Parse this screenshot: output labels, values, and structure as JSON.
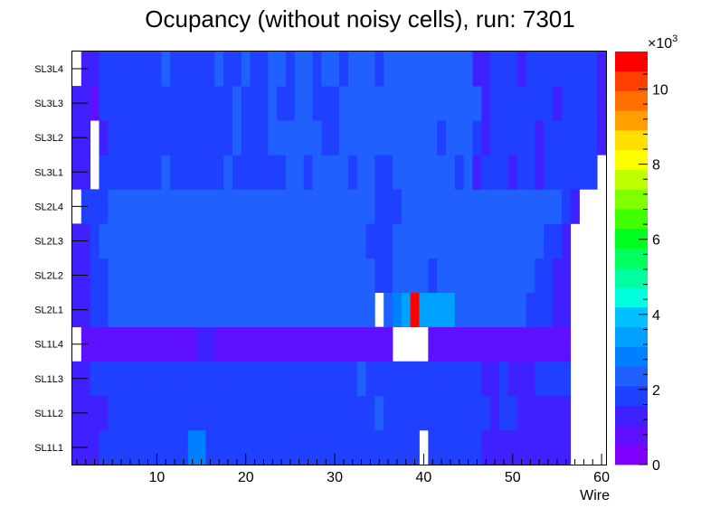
{
  "chart_data": {
    "type": "heatmap",
    "title": "Ocupancy (without noisy cells), run: 7301",
    "xlabel": "Wire",
    "ylabel": "",
    "xlim": [
      0.5,
      60.5
    ],
    "x_ticks": [
      "10",
      "20",
      "30",
      "40",
      "50",
      "60"
    ],
    "y_categories": [
      "SL1L1",
      "SL1L2",
      "SL1L3",
      "SL1L4",
      "SL2L1",
      "SL2L2",
      "SL2L3",
      "SL2L4",
      "SL3L1",
      "SL3L2",
      "SL3L3",
      "SL3L4"
    ],
    "color_scale": {
      "min": 0,
      "max": 11000,
      "exponent_label": "×10",
      "exponent_power": "3",
      "tick_labels": [
        "0",
        "2",
        "4",
        "6",
        "8",
        "10"
      ],
      "palette": [
        "#7f00ff",
        "#5f10ff",
        "#3f20ff",
        "#1f40ff",
        "#2060ff",
        "#0080ff",
        "#00a0ff",
        "#00c0ff",
        "#00ffdf",
        "#00ff9f",
        "#00ff5f",
        "#00ff1f",
        "#40ff00",
        "#7fff00",
        "#bfff00",
        "#ffff00",
        "#ffdf00",
        "#ffa000",
        "#ff7000",
        "#ff4000",
        "#ff0000"
      ]
    },
    "values_note": "approximate occupancy counts estimated from cell colours; null = empty (white) cell",
    "rows": [
      {
        "layer": "SL1L1",
        "values": [
          1200,
          1200,
          1200,
          1800,
          1800,
          1800,
          1800,
          1800,
          1800,
          1800,
          1800,
          1800,
          1800,
          2800,
          2800,
          1800,
          1800,
          1800,
          1800,
          1800,
          1800,
          1800,
          1800,
          1800,
          1800,
          1800,
          1800,
          1800,
          1800,
          1800,
          1800,
          1800,
          1800,
          1800,
          1800,
          1800,
          1800,
          1800,
          1800,
          null,
          1800,
          1800,
          1800,
          1800,
          1800,
          1800,
          1200,
          1200,
          1200,
          1200,
          1200,
          1200,
          1200,
          1200,
          1200,
          1200,
          null,
          null,
          null,
          null
        ]
      },
      {
        "layer": "SL1L2",
        "values": [
          1200,
          1200,
          1200,
          1200,
          1800,
          1800,
          1800,
          1800,
          1800,
          1800,
          1800,
          1800,
          1800,
          1800,
          1800,
          1800,
          1800,
          1800,
          1800,
          1800,
          1800,
          1800,
          1800,
          1800,
          1800,
          1800,
          1800,
          1800,
          1800,
          1800,
          1800,
          1800,
          1800,
          1800,
          2100,
          1800,
          1800,
          1800,
          1800,
          1800,
          1800,
          1800,
          1800,
          1800,
          1800,
          1800,
          1800,
          1200,
          1800,
          1800,
          1200,
          1200,
          1200,
          1200,
          1200,
          1200,
          null,
          null,
          null,
          null
        ]
      },
      {
        "layer": "SL1L3",
        "values": [
          1200,
          1200,
          1800,
          1800,
          1800,
          1800,
          1800,
          1800,
          1800,
          1800,
          1800,
          1800,
          1800,
          1800,
          1800,
          1800,
          1800,
          1800,
          1800,
          1800,
          1800,
          1800,
          1800,
          1800,
          1800,
          1800,
          1800,
          1800,
          1800,
          1800,
          1800,
          1800,
          2100,
          1800,
          1800,
          1800,
          1800,
          1800,
          1800,
          1800,
          1800,
          1800,
          1800,
          1800,
          1800,
          1800,
          1200,
          1200,
          1800,
          1200,
          1200,
          1200,
          1800,
          1800,
          1800,
          1800,
          null,
          null,
          null,
          null
        ]
      },
      {
        "layer": "SL1L4",
        "values": [
          null,
          900,
          900,
          900,
          900,
          900,
          900,
          900,
          900,
          900,
          900,
          900,
          900,
          900,
          1200,
          1200,
          900,
          900,
          900,
          900,
          900,
          900,
          900,
          900,
          900,
          900,
          900,
          900,
          900,
          900,
          900,
          900,
          900,
          900,
          900,
          900,
          null,
          null,
          null,
          null,
          900,
          900,
          900,
          900,
          900,
          900,
          900,
          900,
          900,
          900,
          900,
          900,
          900,
          900,
          900,
          900,
          null,
          null,
          null,
          null
        ]
      },
      {
        "layer": "SL2L1",
        "values": [
          1200,
          1200,
          1800,
          1800,
          2400,
          2400,
          2400,
          2400,
          2400,
          2400,
          2400,
          2400,
          2400,
          2400,
          2400,
          2400,
          2400,
          2400,
          2400,
          2400,
          2400,
          2400,
          2400,
          2400,
          2400,
          2400,
          2400,
          2400,
          2400,
          2400,
          2400,
          2400,
          2400,
          2400,
          null,
          2400,
          2800,
          3200,
          10800,
          3200,
          3200,
          3200,
          3200,
          2400,
          2400,
          2400,
          2400,
          2400,
          2400,
          2400,
          2400,
          1800,
          1800,
          1800,
          1200,
          1200,
          null,
          null,
          null,
          null
        ]
      },
      {
        "layer": "SL2L2",
        "values": [
          1200,
          1200,
          1800,
          1800,
          2400,
          2400,
          2400,
          2400,
          2400,
          2400,
          2400,
          2400,
          2400,
          2400,
          2400,
          2400,
          2400,
          2400,
          2400,
          2400,
          2400,
          2400,
          2400,
          2400,
          2400,
          2400,
          2400,
          2400,
          2400,
          2400,
          2400,
          2400,
          2400,
          2400,
          1800,
          1800,
          2400,
          2400,
          2400,
          2400,
          1800,
          2400,
          2400,
          2400,
          2400,
          2400,
          2400,
          2400,
          2400,
          2400,
          2400,
          2400,
          1800,
          1800,
          1200,
          1200,
          null,
          null,
          null,
          null
        ]
      },
      {
        "layer": "SL2L3",
        "values": [
          1200,
          1200,
          1800,
          2400,
          2400,
          2400,
          2400,
          2400,
          2400,
          2400,
          2400,
          2400,
          2400,
          2400,
          2400,
          2400,
          2400,
          2400,
          2400,
          2400,
          2400,
          2400,
          2400,
          2400,
          2400,
          2400,
          2400,
          2400,
          2400,
          2400,
          2400,
          2400,
          2400,
          1800,
          1800,
          1800,
          2400,
          2400,
          2400,
          2400,
          2400,
          2400,
          2400,
          2400,
          2400,
          2400,
          2400,
          2400,
          2400,
          2400,
          2400,
          2400,
          2400,
          1800,
          1800,
          1200,
          null,
          null,
          null,
          null
        ]
      },
      {
        "layer": "SL2L4",
        "values": [
          null,
          1800,
          1800,
          1800,
          2400,
          2400,
          2400,
          2400,
          2400,
          2400,
          2400,
          2400,
          2400,
          2400,
          2400,
          2400,
          2400,
          2400,
          2400,
          2400,
          2400,
          2400,
          2400,
          2400,
          2400,
          2400,
          2400,
          2400,
          2400,
          2400,
          2400,
          2400,
          2400,
          2400,
          1800,
          1800,
          1800,
          2400,
          2400,
          2400,
          2400,
          2400,
          2400,
          2400,
          2400,
          2400,
          2400,
          2400,
          2400,
          2400,
          2400,
          2400,
          2400,
          2400,
          2400,
          1800,
          1200,
          null,
          null,
          null
        ]
      },
      {
        "layer": "SL3L1",
        "values": [
          1200,
          1200,
          null,
          1800,
          1800,
          1800,
          1800,
          1800,
          1800,
          1800,
          2400,
          1800,
          1800,
          1800,
          1800,
          1800,
          1800,
          2400,
          1800,
          1800,
          1800,
          1800,
          1800,
          1800,
          2400,
          2400,
          1800,
          2400,
          2400,
          2400,
          2400,
          1800,
          2400,
          2400,
          1800,
          1800,
          2400,
          2400,
          2400,
          2400,
          2400,
          2400,
          2400,
          1800,
          2400,
          1200,
          1800,
          1800,
          1800,
          1200,
          1800,
          1800,
          1200,
          1800,
          1800,
          1800,
          1800,
          1800,
          1800,
          null
        ]
      },
      {
        "layer": "SL3L2",
        "values": [
          1200,
          1200,
          null,
          1200,
          1800,
          1800,
          1800,
          1800,
          1800,
          1800,
          1800,
          1800,
          1800,
          1800,
          1800,
          1800,
          1800,
          1800,
          2400,
          1800,
          1800,
          1800,
          2400,
          2400,
          2400,
          2400,
          2400,
          2400,
          1800,
          1800,
          2400,
          2400,
          2400,
          2400,
          2400,
          2400,
          2400,
          2400,
          2400,
          2400,
          2400,
          1800,
          2400,
          2400,
          2400,
          1800,
          1200,
          1800,
          1800,
          1800,
          1800,
          1800,
          1200,
          1800,
          1800,
          1800,
          1800,
          1800,
          1800,
          1200
        ]
      },
      {
        "layer": "SL3L3",
        "values": [
          1200,
          1200,
          900,
          1800,
          1800,
          1800,
          1800,
          1800,
          1800,
          1800,
          1800,
          1800,
          1800,
          1800,
          1800,
          1800,
          1800,
          1800,
          2400,
          1800,
          1800,
          1800,
          2400,
          1800,
          1800,
          2400,
          2400,
          1800,
          1800,
          1800,
          2400,
          2400,
          2400,
          2400,
          2400,
          2400,
          2400,
          2400,
          2400,
          2400,
          2400,
          2400,
          2400,
          2400,
          2400,
          2400,
          1200,
          1800,
          1800,
          1800,
          1800,
          1800,
          1800,
          1800,
          1200,
          1800,
          1800,
          1800,
          1800,
          1200
        ]
      },
      {
        "layer": "SL3L4",
        "values": [
          null,
          1200,
          1200,
          1800,
          1800,
          1800,
          1800,
          1800,
          1800,
          1800,
          2400,
          1800,
          1800,
          1800,
          1800,
          1800,
          2400,
          1800,
          1800,
          2400,
          1800,
          1800,
          2400,
          2400,
          1800,
          2400,
          2400,
          1800,
          2400,
          2400,
          1800,
          2400,
          2400,
          2400,
          1800,
          2400,
          2400,
          2400,
          2400,
          2400,
          2400,
          2400,
          2400,
          2400,
          2400,
          1200,
          1200,
          1800,
          1800,
          1800,
          1200,
          1800,
          1800,
          1800,
          1800,
          1800,
          1800,
          1800,
          1800,
          1200
        ]
      }
    ]
  }
}
